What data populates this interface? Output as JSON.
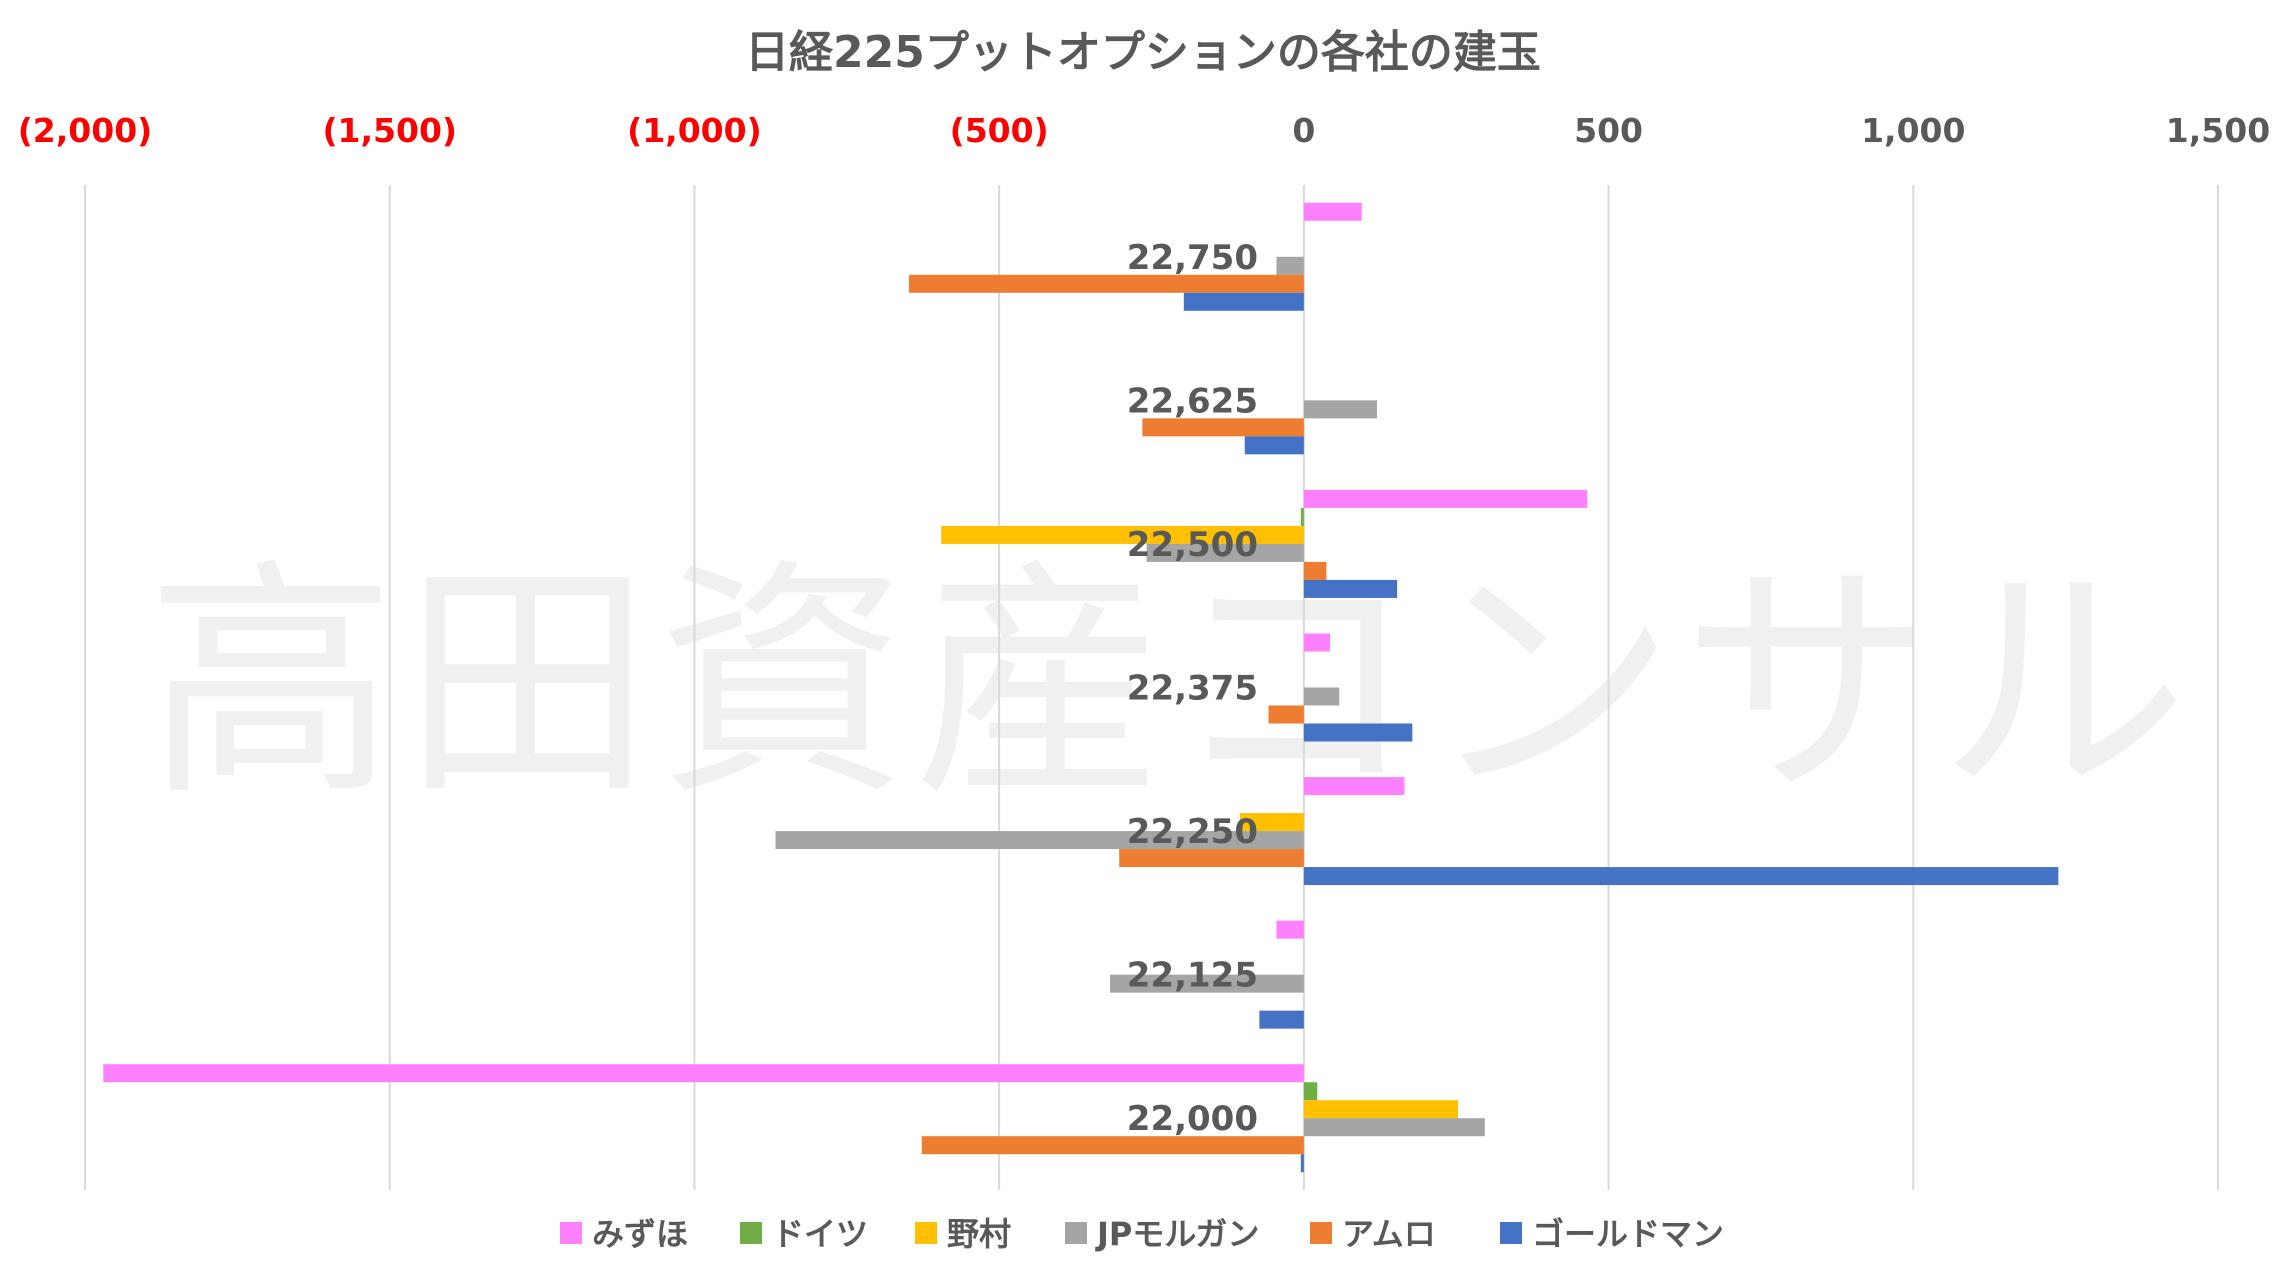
{
  "chart_data": {
    "type": "bar",
    "orientation": "horizontal",
    "title": "日経225プットオプションの各社の建玉",
    "watermark": "高田資産コンサル",
    "xlim": [
      -2000,
      1500
    ],
    "x_ticks": [
      {
        "value": -2000,
        "label": "(2,000)",
        "negative": true
      },
      {
        "value": -1500,
        "label": "(1,500)",
        "negative": true
      },
      {
        "value": -1000,
        "label": "(1,000)",
        "negative": true
      },
      {
        "value": -500,
        "label": "(500)",
        "negative": true
      },
      {
        "value": 0,
        "label": "0",
        "negative": false
      },
      {
        "value": 500,
        "label": "500",
        "negative": false
      },
      {
        "value": 1000,
        "label": "1,000",
        "negative": false
      },
      {
        "value": 1500,
        "label": "1,500",
        "negative": false
      }
    ],
    "axis_position": "top",
    "grid": true,
    "legend_position": "bottom",
    "categories": [
      "22,750",
      "22,625",
      "22,500",
      "22,375",
      "22,250",
      "22,125",
      "22,000"
    ],
    "series": [
      {
        "name": "みずほ",
        "color": "#FF80FF",
        "values": [
          95,
          0,
          465,
          43,
          165,
          -45,
          -1970
        ]
      },
      {
        "name": "ドイツ",
        "color": "#70AD47",
        "values": [
          0,
          0,
          -5,
          0,
          0,
          0,
          22
        ]
      },
      {
        "name": "野村",
        "color": "#FFC000",
        "values": [
          0,
          0,
          -595,
          0,
          -105,
          0,
          253
        ]
      },
      {
        "name": "JPモルガン",
        "color": "#A5A5A5",
        "values": [
          -45,
          120,
          -258,
          58,
          -867,
          -318,
          297
        ]
      },
      {
        "name": "アムロ",
        "color": "#ED7D31",
        "values": [
          -648,
          -265,
          37,
          -58,
          -303,
          0,
          -627
        ]
      },
      {
        "name": "ゴールドマン",
        "color": "#4472C4",
        "values": [
          -197,
          -97,
          153,
          178,
          1238,
          -73,
          -5
        ]
      }
    ],
    "colors": {
      "negative_tick": "#FF0000",
      "positive_tick": "#595959",
      "grid": "#D9D9D9"
    }
  }
}
